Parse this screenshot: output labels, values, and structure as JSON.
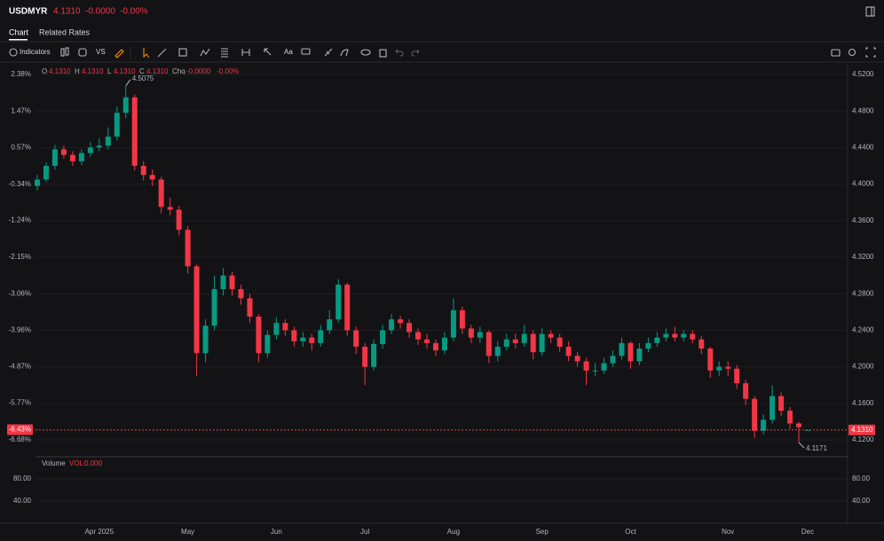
{
  "header": {
    "symbol": "USDMYR",
    "price": "4.1310",
    "change": "-0.0000",
    "change_pct": "-0.00%"
  },
  "tabs": [
    "Chart",
    "Related Rates"
  ],
  "toolbar": {
    "indicators": "Indicators",
    "vs": "VS",
    "text_tool": "Aa"
  },
  "chart_data": {
    "type": "candlestick",
    "legend": {
      "o_key": "O",
      "o": "4.1310",
      "h_key": "H",
      "h": "4.1310",
      "l_key": "L",
      "l": "4.1310",
      "c_key": "C",
      "c": "4.1310",
      "chg_key": "Chg",
      "chg": "-0.0000",
      "chg_pct": "-0.00%"
    },
    "categories": [
      null,
      null,
      null,
      null,
      null,
      null,
      null,
      "Apr 2025",
      null,
      null,
      null,
      null,
      null,
      null,
      null,
      null,
      null,
      "May",
      null,
      null,
      null,
      null,
      null,
      null,
      null,
      null,
      null,
      "Jun",
      null,
      null,
      null,
      null,
      null,
      null,
      null,
      null,
      null,
      "Jul",
      null,
      null,
      null,
      null,
      null,
      null,
      null,
      null,
      null,
      "Aug",
      null,
      null,
      null,
      null,
      null,
      null,
      null,
      null,
      null,
      "Sep",
      null,
      null,
      null,
      null,
      null,
      null,
      null,
      null,
      null,
      "Oct",
      null,
      null,
      null,
      null,
      null,
      null,
      null,
      null,
      null,
      null,
      "Nov",
      null,
      null,
      null,
      null,
      null,
      null,
      null,
      null,
      "Dec"
    ],
    "open": [
      4.398,
      4.405,
      4.42,
      4.438,
      4.432,
      4.425,
      4.434,
      4.44,
      4.442,
      4.452,
      4.478,
      4.495,
      4.42,
      4.41,
      4.405,
      4.375,
      4.372,
      4.35,
      4.31,
      4.215,
      4.245,
      4.285,
      4.3,
      4.285,
      4.275,
      4.255,
      4.215,
      4.235,
      4.248,
      4.24,
      4.228,
      4.232,
      4.226,
      4.24,
      4.252,
      4.29,
      4.24,
      4.222,
      4.2,
      4.225,
      4.24,
      4.252,
      4.248,
      4.238,
      4.23,
      4.226,
      4.218,
      4.232,
      4.262,
      4.242,
      4.232,
      4.238,
      4.212,
      4.222,
      4.23,
      4.226,
      4.236,
      4.216,
      4.236,
      4.232,
      4.222,
      4.212,
      4.206,
      4.196,
      4.196,
      4.204,
      4.212,
      4.226,
      4.206,
      4.22,
      4.226,
      4.232,
      4.236,
      4.232,
      4.236,
      4.23,
      4.22,
      4.196,
      4.2,
      4.198,
      4.182,
      4.165,
      4.13,
      4.142,
      4.168,
      4.152,
      4.138,
      4.131
    ],
    "high": [
      4.41,
      4.424,
      4.443,
      4.442,
      4.436,
      4.438,
      4.446,
      4.45,
      4.462,
      4.485,
      4.5075,
      4.498,
      4.425,
      4.416,
      4.408,
      4.385,
      4.376,
      4.354,
      4.312,
      4.252,
      4.3,
      4.308,
      4.304,
      4.29,
      4.28,
      4.258,
      4.24,
      4.254,
      4.252,
      4.244,
      4.238,
      4.236,
      4.246,
      4.262,
      4.296,
      4.292,
      4.244,
      4.226,
      4.23,
      4.246,
      4.258,
      4.256,
      4.252,
      4.242,
      4.236,
      4.23,
      4.238,
      4.275,
      4.266,
      4.246,
      4.244,
      4.24,
      4.228,
      4.236,
      4.236,
      4.246,
      4.24,
      4.242,
      4.24,
      4.236,
      4.228,
      4.216,
      4.21,
      4.204,
      4.21,
      4.218,
      4.232,
      4.228,
      4.226,
      4.232,
      4.238,
      4.242,
      4.244,
      4.24,
      4.24,
      4.234,
      4.222,
      4.206,
      4.206,
      4.202,
      4.186,
      4.168,
      4.148,
      4.18,
      4.172,
      4.156,
      4.14,
      4.131
    ],
    "low": [
      4.393,
      4.402,
      4.416,
      4.428,
      4.42,
      4.421,
      4.43,
      4.436,
      4.438,
      4.448,
      4.472,
      4.415,
      4.404,
      4.398,
      4.368,
      4.366,
      4.344,
      4.302,
      4.19,
      4.205,
      4.24,
      4.278,
      4.278,
      4.268,
      4.248,
      4.205,
      4.21,
      4.23,
      4.234,
      4.222,
      4.222,
      4.218,
      4.222,
      4.236,
      4.248,
      4.234,
      4.214,
      4.18,
      4.196,
      4.22,
      4.236,
      4.242,
      4.232,
      4.224,
      4.22,
      4.212,
      4.214,
      4.228,
      4.236,
      4.226,
      4.226,
      4.204,
      4.206,
      4.218,
      4.22,
      4.222,
      4.208,
      4.212,
      4.226,
      4.216,
      4.206,
      4.2,
      4.18,
      4.19,
      4.192,
      4.2,
      4.208,
      4.198,
      4.202,
      4.216,
      4.222,
      4.228,
      4.228,
      4.228,
      4.226,
      4.214,
      4.188,
      4.19,
      4.19,
      4.176,
      4.158,
      4.122,
      4.126,
      4.138,
      4.146,
      4.132,
      4.1171,
      4.131
    ],
    "close": [
      4.405,
      4.42,
      4.438,
      4.432,
      4.425,
      4.434,
      4.44,
      4.442,
      4.452,
      4.478,
      4.495,
      4.42,
      4.41,
      4.405,
      4.375,
      4.372,
      4.35,
      4.31,
      4.215,
      4.245,
      4.285,
      4.3,
      4.285,
      4.275,
      4.255,
      4.215,
      4.235,
      4.248,
      4.24,
      4.228,
      4.232,
      4.226,
      4.24,
      4.252,
      4.29,
      4.24,
      4.222,
      4.2,
      4.225,
      4.24,
      4.252,
      4.248,
      4.238,
      4.23,
      4.226,
      4.218,
      4.232,
      4.262,
      4.242,
      4.232,
      4.238,
      4.212,
      4.222,
      4.23,
      4.226,
      4.236,
      4.216,
      4.236,
      4.232,
      4.222,
      4.212,
      4.206,
      4.196,
      4.196,
      4.204,
      4.212,
      4.226,
      4.206,
      4.22,
      4.226,
      4.232,
      4.236,
      4.232,
      4.236,
      4.23,
      4.22,
      4.196,
      4.2,
      4.198,
      4.182,
      4.165,
      4.13,
      4.142,
      4.168,
      4.152,
      4.138,
      4.134,
      4.131
    ],
    "up_color": "#089981",
    "down_color": "#f23645",
    "ylim": [
      4.1016,
      4.5287
    ],
    "yticks": [
      {
        "value": 4.52,
        "label": "4.5200"
      },
      {
        "value": 4.48,
        "label": "4.4800"
      },
      {
        "value": 4.44,
        "label": "4.4400"
      },
      {
        "value": 4.4,
        "label": "4.4000"
      },
      {
        "value": 4.36,
        "label": "4.3600"
      },
      {
        "value": 4.32,
        "label": "4.3200"
      },
      {
        "value": 4.28,
        "label": "4.2800"
      },
      {
        "value": 4.24,
        "label": "4.2400"
      },
      {
        "value": 4.2,
        "label": "4.2000"
      },
      {
        "value": 4.16,
        "label": "4.1600"
      },
      {
        "value": 4.12,
        "label": "4.1200"
      }
    ],
    "y2lim": [
      -7.1,
      2.58
    ],
    "y2ticks": [
      {
        "value": 2.38,
        "label": "2.38%"
      },
      {
        "value": 1.47,
        "label": "1.47%"
      },
      {
        "value": 0.57,
        "label": "0.57%"
      },
      {
        "value": -0.34,
        "label": "-0.34%"
      },
      {
        "value": -1.24,
        "label": "-1.24%"
      },
      {
        "value": -2.15,
        "label": "-2.15%"
      },
      {
        "value": -3.06,
        "label": "-3.06%"
      },
      {
        "value": -3.96,
        "label": "-3.96%"
      },
      {
        "value": -4.87,
        "label": "-4.87%"
      },
      {
        "value": -5.77,
        "label": "-5.77%"
      },
      {
        "value": -6.68,
        "label": "-6.68%"
      }
    ],
    "grid": true,
    "last_price": {
      "value": 4.131,
      "label": "4.1310",
      "pct_value": -6.43,
      "pct_label": "-6.43%"
    },
    "high_marker": 4.5075,
    "low_marker": 4.1171,
    "volume": {
      "title": "Volume",
      "key": "VOL:",
      "value": "0.000",
      "ylim": [
        0,
        120
      ],
      "yticks": [
        {
          "value": 80,
          "label": "80.00"
        },
        {
          "value": 40,
          "label": "40.00"
        }
      ]
    }
  }
}
